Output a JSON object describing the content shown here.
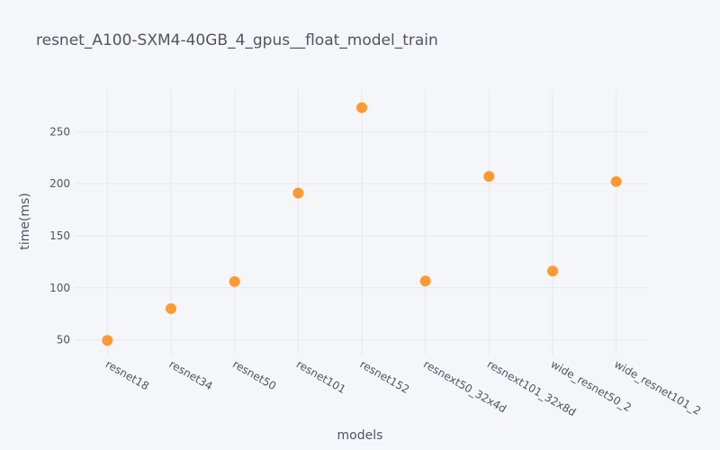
{
  "chart_data": {
    "type": "scatter",
    "title": "resnet_A100-SXM4-40GB_4_gpus__float_model_train",
    "xlabel": "models",
    "ylabel": "time(ms)",
    "categories": [
      "resnet18",
      "resnet34",
      "resnet50",
      "resnet101",
      "resnet152",
      "resnext50_32x4d",
      "resnext101_32x8d",
      "wide_resnet50_2",
      "wide_resnet101_2"
    ],
    "values": [
      49.5,
      80,
      106,
      191,
      273,
      106.5,
      207,
      116,
      202
    ],
    "yticks": [
      50,
      100,
      150,
      200,
      250
    ],
    "ylim": [
      35,
      290
    ],
    "grid": true,
    "marker_color": "#ff9933",
    "background_color": "#f5f6f9",
    "grid_color": "#e5e7ee",
    "text_color": "#4d5663"
  }
}
